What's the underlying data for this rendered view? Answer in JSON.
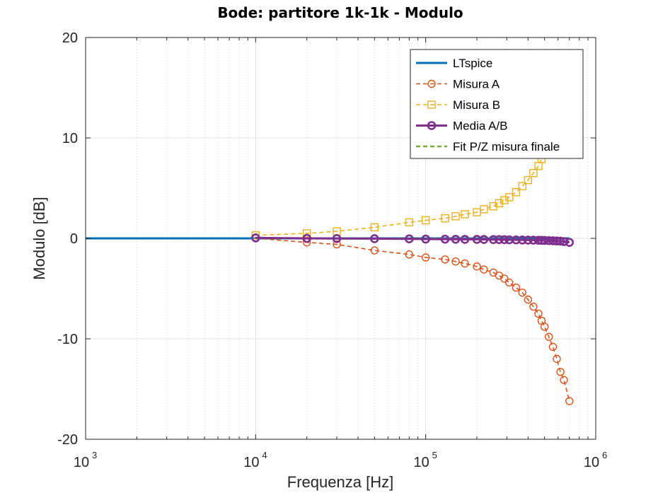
{
  "chart_data": {
    "type": "line",
    "title": "Bode: partitore 1k-1k - Modulo",
    "xlabel": "Frequenza [Hz]",
    "ylabel": "Modulo [dB]",
    "xscale": "log",
    "xlim": [
      1000,
      1000000
    ],
    "ylim": [
      -20,
      20
    ],
    "x_ticks": [
      {
        "base": "10",
        "exp": "3",
        "value": 1000
      },
      {
        "base": "10",
        "exp": "4",
        "value": 10000
      },
      {
        "base": "10",
        "exp": "5",
        "value": 100000
      },
      {
        "base": "10",
        "exp": "6",
        "value": 1000000
      }
    ],
    "y_ticks": [
      {
        "label": "20",
        "value": 20
      },
      {
        "label": "10",
        "value": 10
      },
      {
        "label": "0",
        "value": 0
      },
      {
        "label": "-10",
        "value": -10
      },
      {
        "label": "-20",
        "value": -20
      }
    ],
    "grid": true,
    "legend_position": "top-right",
    "series": [
      {
        "name": "LTspice",
        "color": "#0072BD",
        "style": "solid",
        "marker": "none",
        "x": [
          1000,
          700000
        ],
        "y": [
          0,
          0
        ]
      },
      {
        "name": "Misura A",
        "color": "#D95319",
        "style": "dashed",
        "marker": "circle",
        "x": [
          10000,
          20000,
          30000,
          50000,
          80000,
          100000,
          130000,
          150000,
          170000,
          200000,
          220000,
          250000,
          270000,
          290000,
          310000,
          340000,
          370000,
          400000,
          430000,
          460000,
          480000,
          500000,
          530000,
          560000,
          590000,
          620000,
          650000,
          700000
        ],
        "y": [
          0.0,
          -0.4,
          -0.6,
          -1.2,
          -1.6,
          -1.9,
          -2.1,
          -2.3,
          -2.5,
          -2.8,
          -3.1,
          -3.4,
          -3.7,
          -4.0,
          -4.4,
          -4.9,
          -5.4,
          -6.1,
          -6.8,
          -7.5,
          -8.2,
          -8.8,
          -9.8,
          -10.8,
          -12.0,
          -13.3,
          -14.1,
          -16.2
        ]
      },
      {
        "name": "Misura B",
        "color": "#EDB120",
        "style": "dashed",
        "marker": "square",
        "x": [
          10000,
          20000,
          30000,
          50000,
          80000,
          100000,
          130000,
          150000,
          170000,
          200000,
          220000,
          250000,
          270000,
          290000,
          310000,
          340000,
          370000,
          400000,
          430000,
          460000,
          480000,
          500000,
          530000
        ],
        "y": [
          0.3,
          0.5,
          0.7,
          1.1,
          1.6,
          1.8,
          2.0,
          2.2,
          2.4,
          2.6,
          2.9,
          3.2,
          3.5,
          3.8,
          4.1,
          4.6,
          5.2,
          5.8,
          6.5,
          7.2,
          7.9,
          8.5,
          9.3
        ]
      },
      {
        "name": "Media A/B",
        "color": "#7E2F8E",
        "style": "solid",
        "marker": "circle",
        "x": [
          10000,
          20000,
          30000,
          50000,
          80000,
          100000,
          130000,
          150000,
          170000,
          200000,
          220000,
          250000,
          270000,
          290000,
          310000,
          340000,
          370000,
          400000,
          430000,
          460000,
          480000,
          500000,
          530000,
          560000,
          590000,
          620000,
          650000,
          700000
        ],
        "y": [
          0.05,
          0.0,
          -0.02,
          -0.03,
          -0.05,
          -0.07,
          -0.08,
          -0.09,
          -0.1,
          -0.1,
          -0.11,
          -0.12,
          -0.12,
          -0.13,
          -0.14,
          -0.15,
          -0.16,
          -0.17,
          -0.18,
          -0.19,
          -0.2,
          -0.21,
          -0.22,
          -0.24,
          -0.26,
          -0.28,
          -0.32,
          -0.4
        ]
      },
      {
        "name": "Fit P/Z misura finale",
        "color": "#77AC30",
        "style": "dashed",
        "marker": "none",
        "x": [
          10000,
          30000,
          100000,
          200000,
          300000,
          400000,
          500000,
          600000,
          700000
        ],
        "y": [
          0.0,
          0.0,
          -0.02,
          -0.05,
          -0.08,
          -0.12,
          -0.16,
          -0.22,
          -0.3
        ]
      }
    ]
  }
}
